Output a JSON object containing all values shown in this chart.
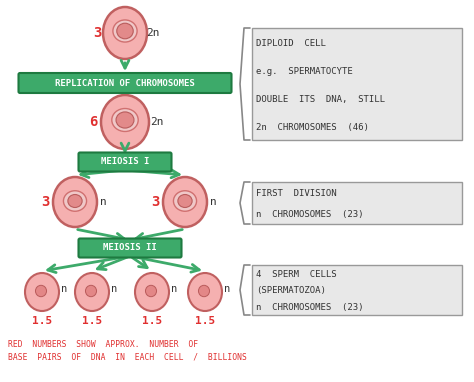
{
  "bg_color": "#ffffff",
  "green_box_color": "#3daa6a",
  "green_box_text_color": "#ffffff",
  "green_arrow_color": "#3daa6a",
  "red_number_color": "#e03030",
  "black_text_color": "#333333",
  "gray_box_color": "#e8e8e8",
  "gray_box_border": "#999999",
  "cell_outer_color": "#f5b0b0",
  "cell_outer_edge": "#c06060",
  "cell_inner_color": "#f0c8c8",
  "cell_inner_edge": "#d07070",
  "cell_nuc_color": "#e08080",
  "cell_nuc_edge": "#b05050",
  "box1_label": "REPLICATION OF CHROMOSOMES",
  "box2_label": "MEIOSIS I",
  "box3_label": "MEIOSIS II",
  "note1_lines": [
    "DIPLOID  CELL",
    "e.g.  SPERMATOCYTE",
    "DOUBLE  ITS  DNA,  STILL",
    "2n  CHROMOSOMES  (46)"
  ],
  "note2_lines": [
    "FIRST  DIVISION",
    "n  CHROMOSOMES  (23)"
  ],
  "note3_lines": [
    "4  SPERM  CELLS",
    "(SPERMATOZOA)",
    "n  CHROMOSOMES  (23)"
  ],
  "bottom_note_line1": "RED  NUMBERS  SHOW  APPROX.  NUMBER  OF",
  "bottom_note_line2": "BASE  PAIRS  OF  DNA  IN  EACH  CELL  /  BILLIONS",
  "cell1_number": "3",
  "cell1_ploidy": "2n",
  "cell2_number": "6",
  "cell2_ploidy": "2n",
  "cell_left_number": "3",
  "cell_left_ploidy": "n",
  "cell_right_number": "3",
  "cell_right_ploidy": "n",
  "bottom_numbers": [
    "1.5",
    "1.5",
    "1.5",
    "1.5"
  ],
  "bottom_ploidy": "n",
  "figw": 4.74,
  "figh": 3.82,
  "dpi": 100
}
